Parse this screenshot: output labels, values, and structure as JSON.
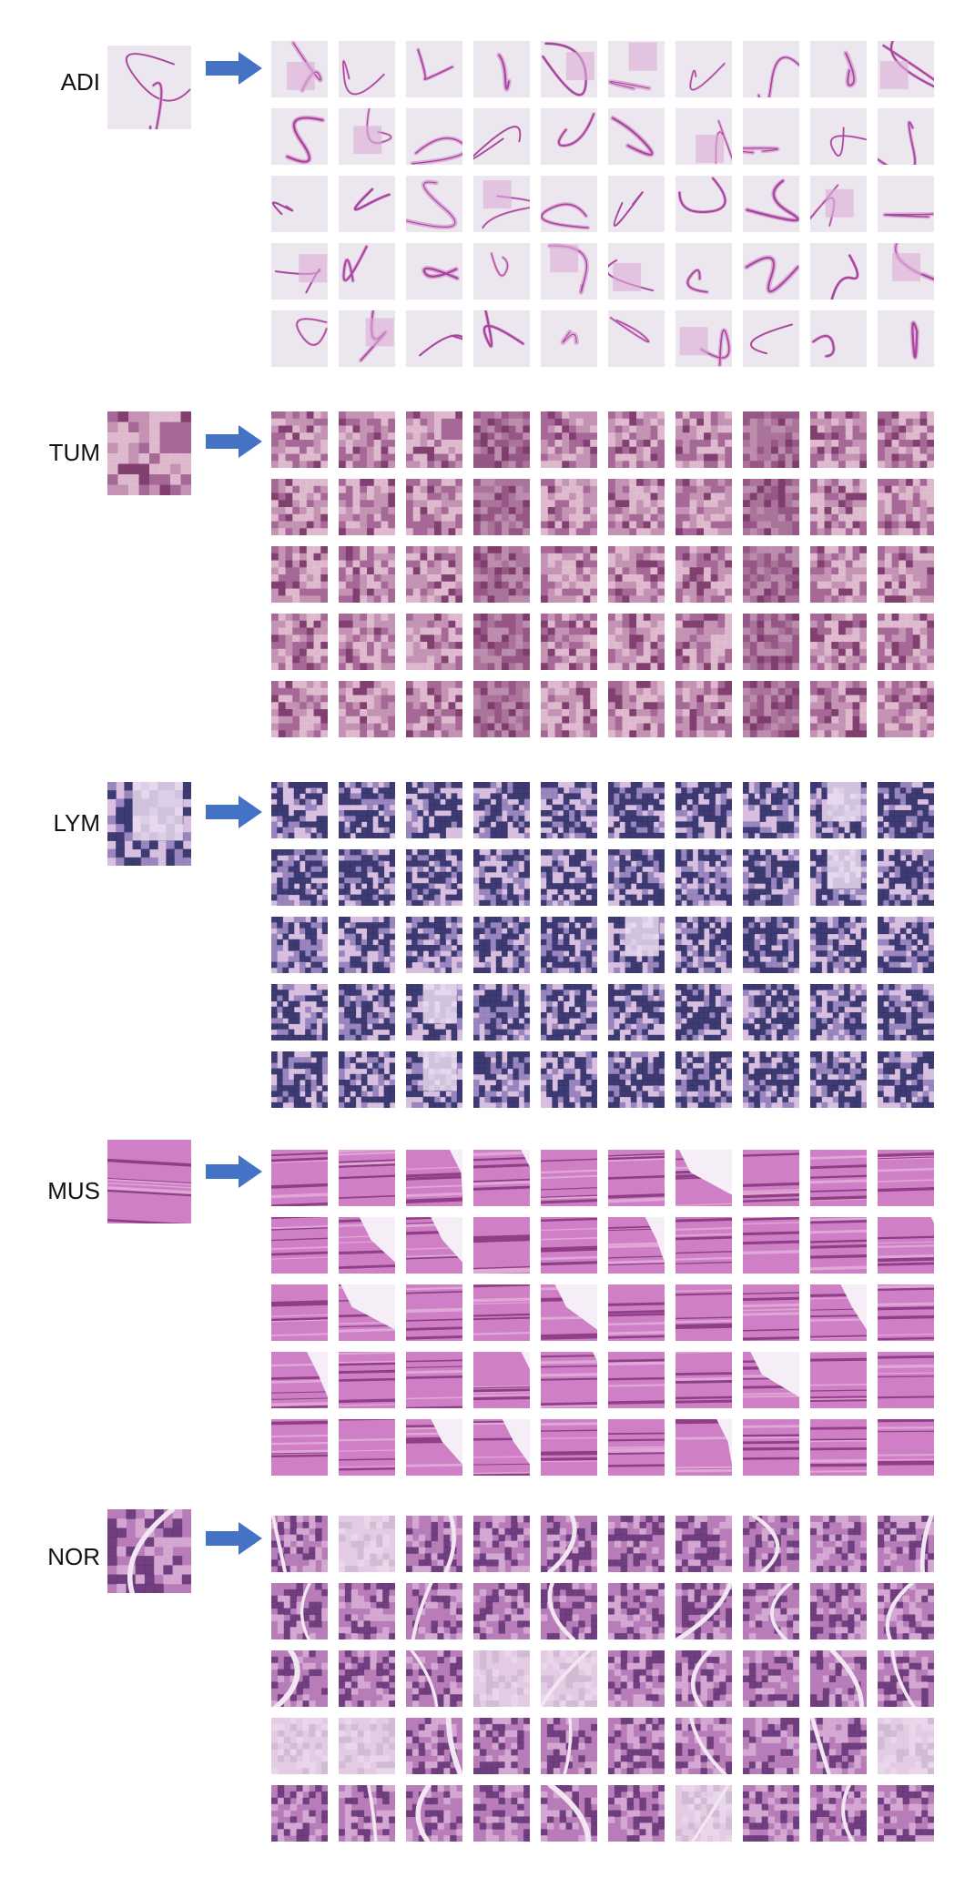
{
  "figure": {
    "grid": {
      "rows": 5,
      "cols": 10
    },
    "arrow_color": "#4472c4",
    "sections": [
      {
        "label": "ADI",
        "query_icon": "adipose-tissue-patch",
        "palette": {
          "base": "#ece7ee",
          "mid": "#dcaed8",
          "dark": "#a8469e",
          "fill_light": "#f0ecf2"
        },
        "texture": "sparse-strands"
      },
      {
        "label": "TUM",
        "query_icon": "tumor-tissue-patch",
        "palette": {
          "base": "#a66896",
          "mid": "#c99ab9",
          "dark": "#7a3a6a",
          "fill_light": "#e8c8d8"
        },
        "texture": "dense-mottled"
      },
      {
        "label": "LYM",
        "query_icon": "lymphocyte-patch",
        "palette": {
          "base": "#d8bfe0",
          "mid": "#8b78b6",
          "dark": "#2e2c66",
          "fill_light": "#eadcf0"
        },
        "texture": "dotted-nuclei"
      },
      {
        "label": "MUS",
        "query_icon": "muscle-tissue-patch",
        "palette": {
          "base": "#cf7fc6",
          "mid": "#e0a8d6",
          "dark": "#8e3f86",
          "fill_light": "#f6eef6"
        },
        "texture": "fibrous"
      },
      {
        "label": "NOR",
        "query_icon": "normal-mucosa-patch",
        "palette": {
          "base": "#b87cb8",
          "mid": "#d9b2d8",
          "dark": "#5e2f72",
          "fill_light": "#f1e6f1"
        },
        "texture": "glandular"
      }
    ]
  }
}
